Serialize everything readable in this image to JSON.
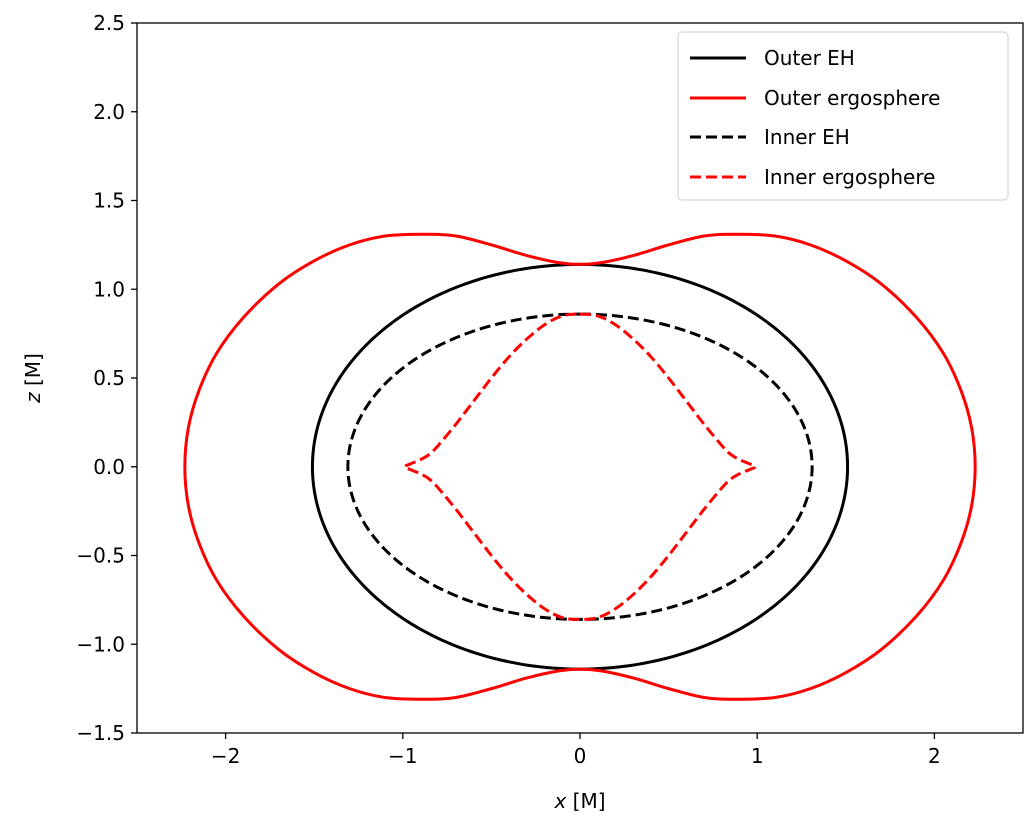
{
  "chart_data": {
    "type": "line",
    "xlabel": {
      "var": "x",
      "unit": " [M]"
    },
    "ylabel": {
      "var": "z",
      "unit": " [M]"
    },
    "xlim": [
      -2.5,
      2.5
    ],
    "ylim": [
      -1.5,
      2.5
    ],
    "xticks": [
      -2,
      -1,
      0,
      1,
      2
    ],
    "xtick_labels": [
      "−2",
      "−1",
      "0",
      "1",
      "2"
    ],
    "yticks": [
      -1.5,
      -1.0,
      -0.5,
      0.0,
      0.5,
      1.0,
      1.5,
      2.0,
      2.5
    ],
    "ytick_labels": [
      "−1.5",
      "−1.0",
      "−0.5",
      "0.0",
      "0.5",
      "1.0",
      "1.5",
      "2.0",
      "2.5"
    ],
    "grid": false,
    "legend_position": "top-right",
    "series": [
      {
        "name": "Outer EH",
        "color": "#000000",
        "dash": "solid",
        "curve": "ellipse",
        "semi_axis_x": 1.51,
        "semi_axis_z": 1.14
      },
      {
        "name": "Outer ergosphere",
        "color": "#ff0000",
        "dash": "solid",
        "curve": "points",
        "x": [
          0,
          0.12,
          0.3,
          0.5,
          0.7,
          0.88,
          1.1,
          1.3,
          1.5,
          1.7,
          1.9,
          2.05,
          2.15,
          2.21,
          2.23
        ],
        "z": [
          1.14,
          1.15,
          1.19,
          1.25,
          1.3,
          1.31,
          1.3,
          1.25,
          1.16,
          1.03,
          0.84,
          0.64,
          0.43,
          0.22,
          0.0
        ]
      },
      {
        "name": "Inner EH",
        "color": "#000000",
        "dash": "dashed",
        "curve": "ellipse",
        "semi_axis_x": 1.31,
        "semi_axis_z": 0.86
      },
      {
        "name": "Inner ergosphere",
        "color": "#ff0000",
        "dash": "dashed",
        "curve": "points",
        "x": [
          0,
          0.1,
          0.2,
          0.3,
          0.4,
          0.5,
          0.6,
          0.7,
          0.8,
          0.85,
          0.9,
          0.96,
          0.99
        ],
        "z": [
          0.86,
          0.85,
          0.8,
          0.72,
          0.62,
          0.5,
          0.37,
          0.24,
          0.12,
          0.07,
          0.04,
          0.015,
          0.0
        ]
      }
    ]
  }
}
